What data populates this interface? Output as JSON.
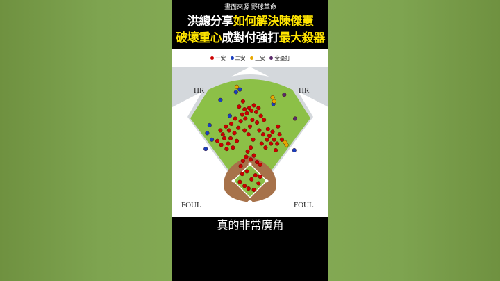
{
  "source_caption": "畫面來源  野球革命",
  "headline": {
    "line1": [
      {
        "text": "洪總分享",
        "color": "white"
      },
      {
        "text": "如何解決陳傑憲",
        "color": "yellow"
      }
    ],
    "line2": [
      {
        "text": "破壞重心",
        "color": "yellow"
      },
      {
        "text": "成對付強打",
        "color": "white"
      },
      {
        "text": "最大殺器",
        "color": "yellow"
      }
    ]
  },
  "subtitle": "真的非常廣角",
  "chart_data": {
    "type": "scatter",
    "title": "",
    "legend_position": "top",
    "field_labels": {
      "hr_left": "HR",
      "hr_right": "HR",
      "foul_left": "FOUL",
      "foul_right": "FOUL"
    },
    "series": [
      {
        "name": "一安",
        "color": "#cc0000",
        "points": [
          [
            -0.42,
            0.47
          ],
          [
            -0.37,
            0.44
          ],
          [
            -0.33,
            0.49
          ],
          [
            -0.28,
            0.45
          ],
          [
            -0.3,
            0.41
          ],
          [
            -0.25,
            0.49
          ],
          [
            -0.22,
            0.42
          ],
          [
            -0.35,
            0.52
          ],
          [
            -0.2,
            0.53
          ],
          [
            -0.27,
            0.55
          ],
          [
            -0.31,
            0.58
          ],
          [
            -0.17,
            0.47
          ],
          [
            -0.24,
            0.6
          ],
          [
            -0.38,
            0.55
          ],
          [
            -0.15,
            0.57
          ],
          [
            -0.12,
            0.62
          ],
          [
            -0.19,
            0.64
          ],
          [
            -0.1,
            0.67
          ],
          [
            -0.07,
            0.71
          ],
          [
            -0.04,
            0.68
          ],
          [
            -0.01,
            0.72
          ],
          [
            0.02,
            0.7
          ],
          [
            0.05,
            0.74
          ],
          [
            0.08,
            0.69
          ],
          [
            0.11,
            0.72
          ],
          [
            0.14,
            0.66
          ],
          [
            0.03,
            0.63
          ],
          [
            -0.06,
            0.64
          ],
          [
            0.09,
            0.61
          ],
          [
            0.18,
            0.63
          ],
          [
            0.0,
            0.58
          ],
          [
            -0.14,
            0.73
          ],
          [
            -0.09,
            0.77
          ],
          [
            -0.02,
            0.52
          ],
          [
            0.04,
            0.48
          ],
          [
            0.12,
            0.55
          ],
          [
            0.17,
            0.52
          ],
          [
            -0.07,
            0.55
          ],
          [
            0.15,
            0.45
          ],
          [
            0.01,
            0.42
          ],
          [
            0.22,
            0.48
          ],
          [
            0.27,
            0.45
          ],
          [
            0.25,
            0.51
          ],
          [
            0.31,
            0.48
          ],
          [
            0.29,
            0.54
          ],
          [
            0.35,
            0.45
          ],
          [
            0.38,
            0.52
          ],
          [
            0.33,
            0.4
          ],
          [
            0.23,
            0.56
          ],
          [
            0.36,
            0.58
          ],
          [
            0.41,
            0.48
          ],
          [
            0.2,
            0.42
          ],
          [
            -0.09,
            0.32
          ],
          [
            -0.12,
            0.28
          ],
          [
            -0.05,
            0.35
          ],
          [
            0.01,
            0.33
          ],
          [
            0.05,
            0.36
          ],
          [
            0.09,
            0.31
          ],
          [
            0.13,
            0.29
          ],
          [
            -0.03,
            0.39
          ],
          [
            -0.1,
            0.22
          ],
          [
            -0.04,
            0.24
          ],
          [
            0.02,
            0.18
          ],
          [
            0.07,
            0.21
          ],
          [
            0.11,
            0.15
          ],
          [
            0.05,
            0.1
          ],
          [
            -0.02,
            0.11
          ],
          [
            -0.07,
            0.13
          ],
          [
            0.13,
            0.2
          ],
          [
            -0.13,
            0.16
          ]
        ]
      },
      {
        "name": "二安",
        "color": "#1a3fbf",
        "points": [
          [
            -0.49,
            0.48
          ],
          [
            -0.55,
            0.53
          ],
          [
            -0.57,
            0.41
          ],
          [
            -0.52,
            0.59
          ],
          [
            -0.38,
            0.78
          ],
          [
            -0.18,
            0.84
          ],
          [
            -0.13,
            0.86
          ],
          [
            -0.26,
            0.66
          ],
          [
            0.3,
            0.75
          ],
          [
            0.57,
            0.4
          ]
        ]
      },
      {
        "name": "三安",
        "color": "#e8a800",
        "points": [
          [
            -0.17,
            0.88
          ],
          [
            0.29,
            0.8
          ],
          [
            0.31,
            0.77
          ],
          [
            0.45,
            0.46
          ],
          [
            0.47,
            0.44
          ]
        ]
      },
      {
        "name": "全壘打",
        "color": "#5a2a6a",
        "points": [
          [
            0.44,
            0.82
          ],
          [
            0.58,
            0.64
          ]
        ]
      }
    ]
  }
}
